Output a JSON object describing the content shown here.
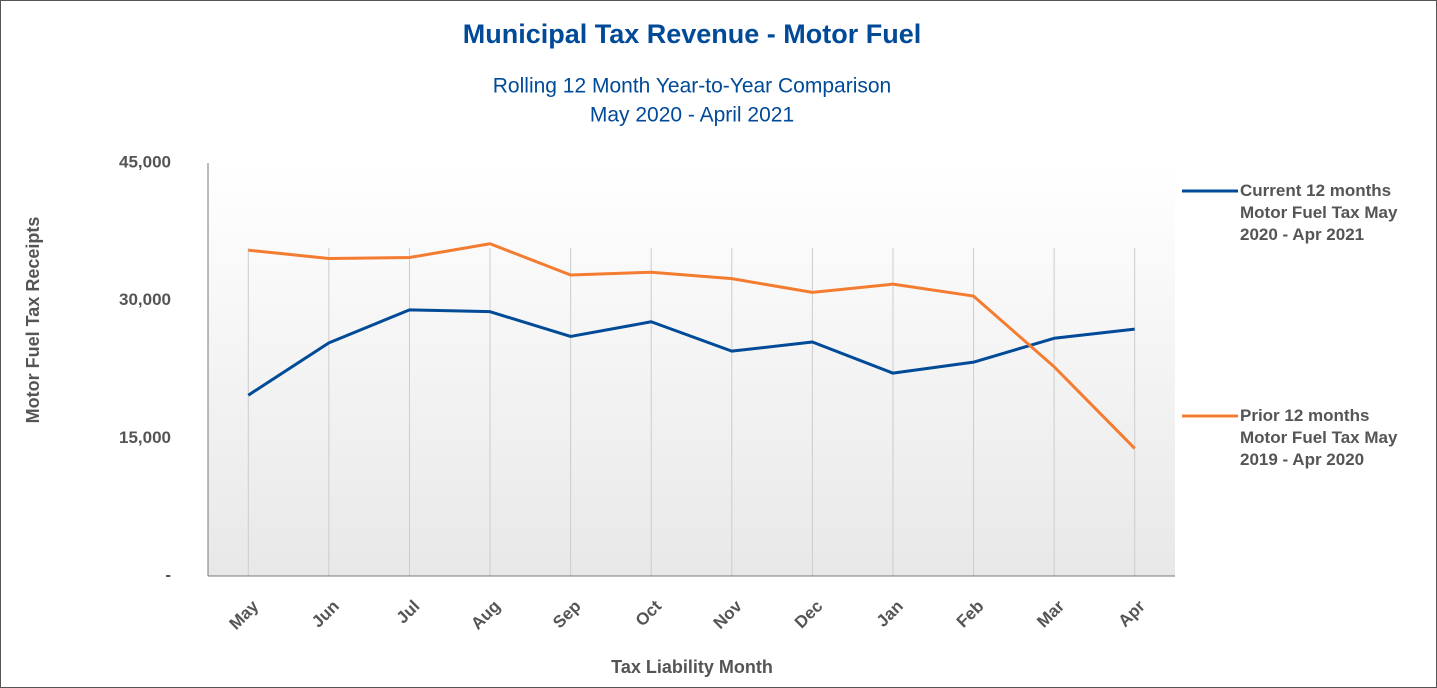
{
  "chart_data": {
    "type": "line",
    "title": "Municipal Tax Revenue - Motor Fuel",
    "subtitle": "Rolling 12 Month Year-to-Year Comparison",
    "date_range": "May 2020 - April 2021",
    "x_label": "Tax Liability Month",
    "y_label": "Motor Fuel Tax Receipts",
    "categories": [
      "May",
      "Jun",
      "Jul",
      "Aug",
      "Sep",
      "Oct",
      "Nov",
      "Dec",
      "Jan",
      "Feb",
      "Mar",
      "Apr"
    ],
    "series": [
      {
        "name": "Current 12 months Motor Fuel Tax May 2020 - Apr 2021",
        "color": "#004a98",
        "values": [
          19700,
          25400,
          29000,
          28800,
          26100,
          27700,
          24500,
          25500,
          22100,
          23300,
          25900,
          26900
        ]
      },
      {
        "name": "Prior 12 months Motor Fuel Tax May 2019 - Apr 2020",
        "color": "#f47c30",
        "values": [
          35500,
          34600,
          34700,
          36200,
          32800,
          33100,
          32400,
          30900,
          31800,
          30500,
          22800,
          13900
        ]
      }
    ],
    "ylim": [
      0,
      45000
    ],
    "yticks": [
      {
        "value": 0,
        "label": "-"
      },
      {
        "value": 15000,
        "label": "15,000"
      },
      {
        "value": 30000,
        "label": "30,000"
      },
      {
        "value": 45000,
        "label": "45,000"
      }
    ],
    "grid": true,
    "legend": "right"
  }
}
